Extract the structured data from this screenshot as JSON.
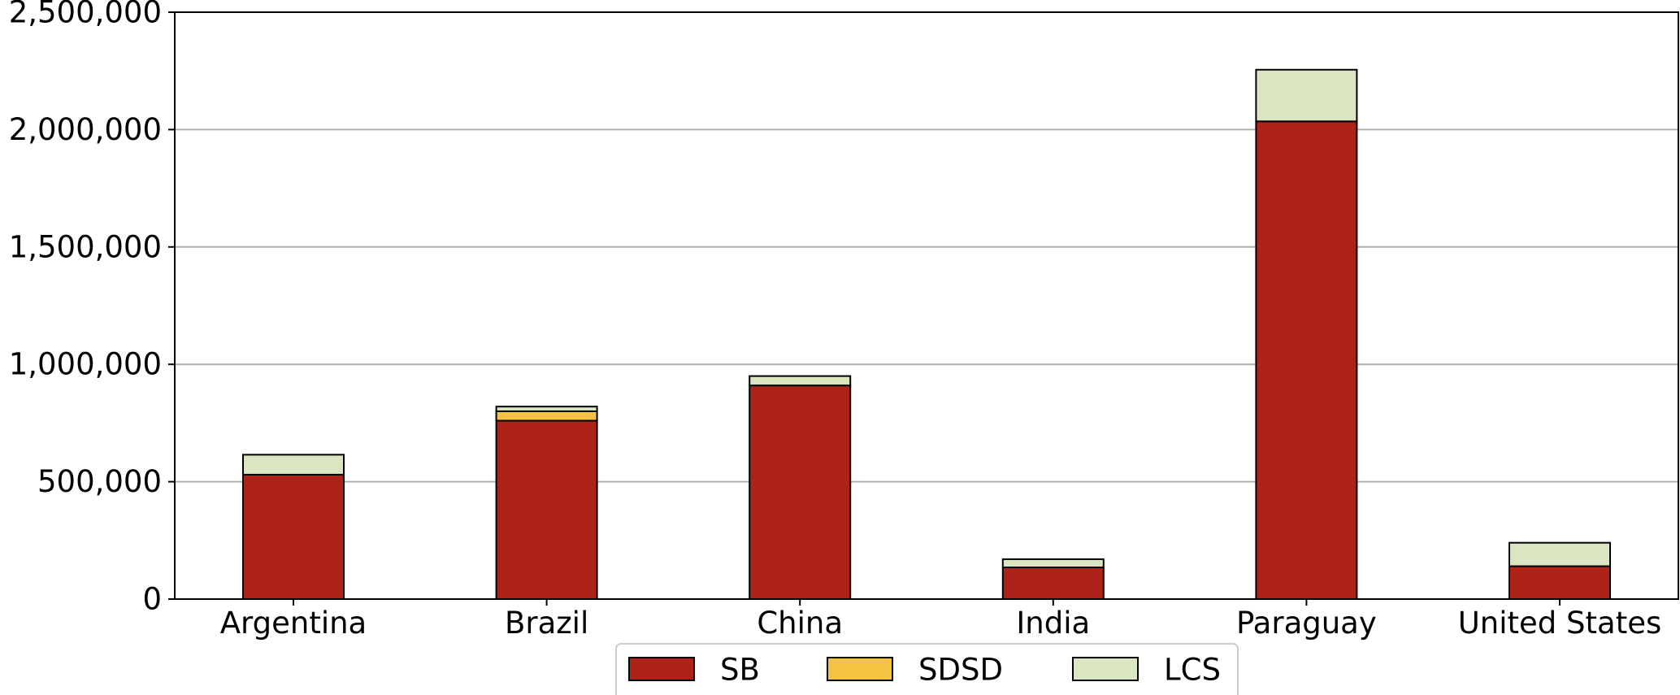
{
  "chart_data": {
    "type": "bar",
    "stacked": true,
    "categories": [
      "Argentina",
      "Brazil",
      "China",
      "India",
      "Paraguay",
      "United States"
    ],
    "series": [
      {
        "name": "SB",
        "color": "#AE2318",
        "values": [
          530000,
          760000,
          910000,
          135000,
          2035000,
          140000
        ]
      },
      {
        "name": "SDSD",
        "color": "#F5C242",
        "values": [
          0,
          40000,
          0,
          0,
          0,
          0
        ]
      },
      {
        "name": "LCS",
        "color": "#D9E6C1",
        "values": [
          85000,
          20000,
          40000,
          35000,
          220000,
          100000
        ]
      }
    ],
    "y_ticks": [
      "0",
      "500,000",
      "1,000,000",
      "1,500,000",
      "2,000,000",
      "2,500,000"
    ],
    "ylim": [
      0,
      2500000
    ],
    "grid": "horizontal",
    "legend_position": "bottom-center"
  }
}
